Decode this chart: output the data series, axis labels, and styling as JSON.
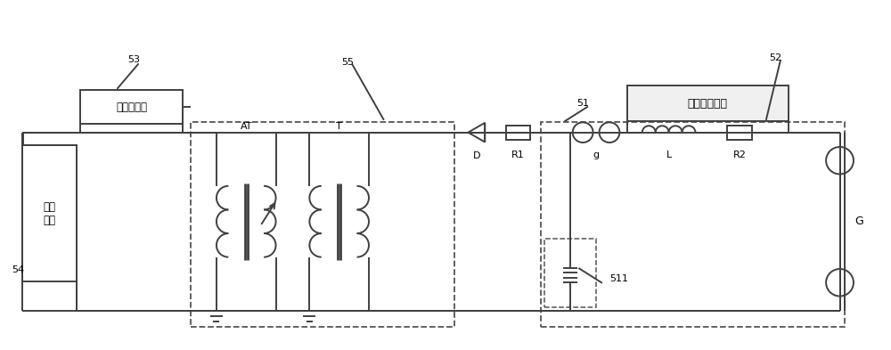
{
  "bg_color": "#ffffff",
  "line_color": "#404040",
  "dashed_color": "#555555",
  "fig_width": 10.0,
  "fig_height": 3.93,
  "labels": {
    "switch_ctrl": "开关控制器",
    "power_module": "电源\n模块",
    "impedance": "阻抗测量模块",
    "AT": "AT",
    "T": "T",
    "D": "D",
    "R1": "R1",
    "g": "g",
    "L": "L",
    "R2": "R2",
    "G": "G",
    "511": "511",
    "num_51": "51",
    "num_52": "52",
    "num_53": "53",
    "num_54": "54",
    "num_55": "55"
  }
}
